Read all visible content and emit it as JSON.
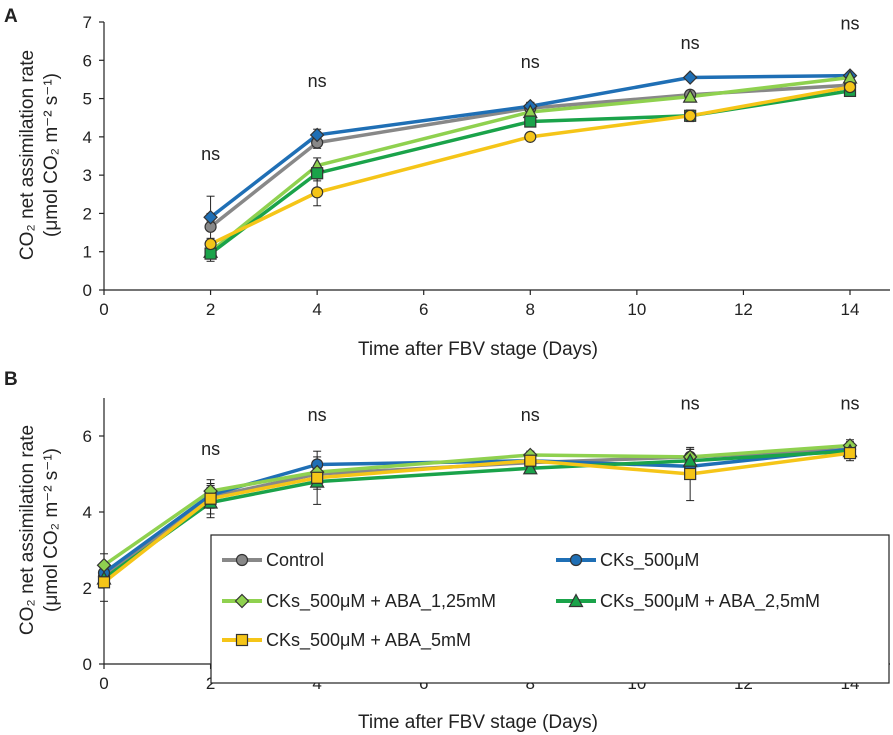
{
  "chart_data": [
    {
      "panel": "A",
      "type": "line",
      "xlabel": "Time after FBV stage (Days)",
      "ylabel_line1": "CO₂ net assimilation rate",
      "ylabel_line2": "(μmol CO₂ m⁻² s⁻¹)",
      "xlim": [
        0,
        14
      ],
      "ylim": [
        0,
        7
      ],
      "xticks": [
        0,
        2,
        4,
        6,
        8,
        10,
        12,
        14
      ],
      "yticks": [
        0,
        1,
        2,
        3,
        4,
        5,
        6,
        7
      ],
      "x": [
        2,
        4,
        8,
        11,
        14
      ],
      "annotations": [
        "ns",
        "ns",
        "ns",
        "ns",
        "ns"
      ],
      "annotation_y": [
        3.4,
        5.3,
        5.8,
        6.3,
        6.8
      ],
      "series": [
        {
          "name": "Control",
          "color": "#888888",
          "marker": "circle",
          "values": [
            1.65,
            3.85,
            4.75,
            5.1,
            5.35
          ],
          "err": [
            0.8,
            0.15,
            0.15,
            0.1,
            0.1
          ]
        },
        {
          "name": "CKs_500μM",
          "color": "#1f6fb5",
          "marker": "diamond",
          "values": [
            1.9,
            4.05,
            4.8,
            5.55,
            5.6
          ],
          "err": [
            0.1,
            0.15,
            0.1,
            0.05,
            0.05
          ]
        },
        {
          "name": "CKs_500μM + ABA_1,25mM",
          "color": "#8fd14f",
          "marker": "triangle",
          "values": [
            1.0,
            3.25,
            4.65,
            5.05,
            5.55
          ],
          "err": [
            0.15,
            0.2,
            0.15,
            0.1,
            0.1
          ]
        },
        {
          "name": "CKs_500μM + ABA_2,5mM",
          "color": "#1aa34a",
          "marker": "square",
          "values": [
            0.95,
            3.05,
            4.4,
            4.55,
            5.2
          ],
          "err": [
            0.2,
            0.2,
            0.1,
            0.15,
            0.1
          ]
        },
        {
          "name": "CKs_500μM + ABA_5mM",
          "color": "#f5c518",
          "marker": "circle",
          "values": [
            1.2,
            2.55,
            4.0,
            4.55,
            5.3
          ],
          "err": [
            0.15,
            0.35,
            0.1,
            0.15,
            0.2
          ]
        }
      ]
    },
    {
      "panel": "B",
      "type": "line",
      "xlabel": "Time after FBV stage (Days)",
      "ylabel_line1": "CO₂ net assimilation rate",
      "ylabel_line2": "(μmol CO₂ m⁻² s⁻¹)",
      "xlim": [
        0,
        14
      ],
      "ylim": [
        0,
        7
      ],
      "xticks": [
        0,
        2,
        4,
        6,
        8,
        10,
        12,
        14
      ],
      "yticks": [
        0,
        2,
        4,
        6
      ],
      "x": [
        0,
        2,
        4,
        8,
        11,
        14
      ],
      "annotations": [
        "",
        "ns",
        "ns",
        "ns",
        "ns",
        "ns"
      ],
      "annotation_y": [
        0,
        5.5,
        6.4,
        6.4,
        6.7,
        6.7
      ],
      "series": [
        {
          "name": "Control",
          "color": "#888888",
          "marker": "circle",
          "values": [
            2.3,
            4.4,
            5.0,
            5.3,
            5.45,
            5.65
          ],
          "err": [
            0.2,
            0.3,
            0.3,
            0.15,
            0.2,
            0.2
          ]
        },
        {
          "name": "CKs_500μM",
          "color": "#1f6fb5",
          "marker": "circle",
          "values": [
            2.4,
            4.45,
            5.25,
            5.35,
            5.2,
            5.65
          ],
          "err": [
            0.2,
            0.2,
            0.2,
            0.15,
            0.2,
            0.15
          ]
        },
        {
          "name": "CKs_500μM + ABA_1,25mM",
          "color": "#8fd14f",
          "marker": "diamond",
          "values": [
            2.6,
            4.55,
            5.05,
            5.5,
            5.45,
            5.75
          ],
          "err": [
            0.3,
            0.2,
            0.2,
            0.1,
            0.2,
            0.15
          ]
        },
        {
          "name": "CKs_500μM + ABA_2,5mM",
          "color": "#1aa34a",
          "marker": "triangle",
          "values": [
            2.25,
            4.25,
            4.8,
            5.15,
            5.35,
            5.6
          ],
          "err": [
            0.2,
            0.3,
            0.2,
            0.1,
            0.2,
            0.15
          ]
        },
        {
          "name": "CKs_500μM + ABA_5mM",
          "color": "#f5c518",
          "marker": "square",
          "values": [
            2.15,
            4.35,
            4.9,
            5.35,
            5.0,
            5.55
          ],
          "err": [
            0.5,
            0.5,
            0.7,
            0.15,
            0.7,
            0.2
          ]
        }
      ]
    }
  ],
  "legend": {
    "items": [
      {
        "label": "Control",
        "color": "#888888",
        "marker": "circle"
      },
      {
        "label": "CKs_500μM",
        "color": "#1f6fb5",
        "marker": "circle"
      },
      {
        "label": "CKs_500μM + ABA_1,25mM",
        "color": "#8fd14f",
        "marker": "diamond"
      },
      {
        "label": "CKs_500μM + ABA_2,5mM",
        "color": "#1aa34a",
        "marker": "triangle"
      },
      {
        "label": "CKs_500μM + ABA_5mM",
        "color": "#f5c518",
        "marker": "square"
      }
    ]
  }
}
